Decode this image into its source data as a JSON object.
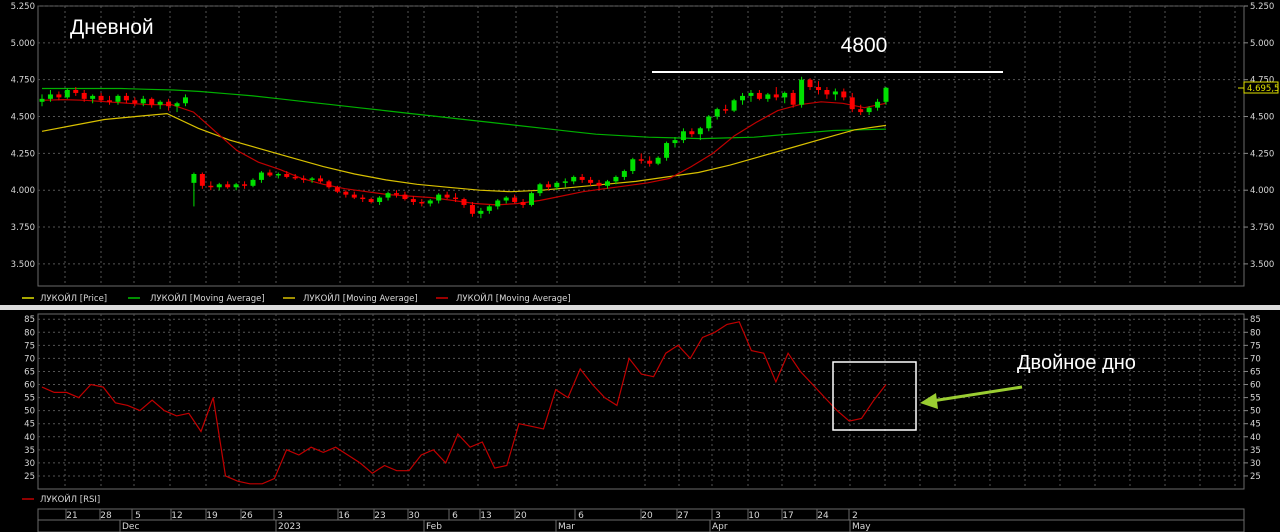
{
  "chart_data": [
    {
      "type": "candlestick",
      "panel": "price",
      "title": "Дневной",
      "y_ticks": [
        "5.250",
        "5.000",
        "4.750",
        "4.500",
        "4.250",
        "4.000",
        "3.750",
        "3.500"
      ],
      "ylim": [
        3350,
        5250
      ],
      "last_price_label": "4.695,5",
      "annotation": {
        "label": "4800",
        "level": 4800
      },
      "legend": [
        {
          "name": "ЛУКОЙЛ [Price]",
          "color": "#e0e000"
        },
        {
          "name": "ЛУКОЙЛ [Moving Average]",
          "color": "#00c000"
        },
        {
          "name": "ЛУКОЙЛ [Moving Average]",
          "color": "#d8c000"
        },
        {
          "name": "ЛУКОЙЛ [Moving Average]",
          "color": "#d00000"
        }
      ],
      "colors": {
        "up": "#00e000",
        "down": "#ff0000",
        "ma_long": "#00b000",
        "ma_mid": "#d8c000",
        "ma_short": "#c00000",
        "grid": "#5a5a5a"
      },
      "candles": [
        [
          4600,
          4650,
          4570,
          4620
        ],
        [
          4620,
          4680,
          4600,
          4650
        ],
        [
          4650,
          4670,
          4610,
          4630
        ],
        [
          4630,
          4690,
          4620,
          4680
        ],
        [
          4680,
          4700,
          4640,
          4660
        ],
        [
          4660,
          4680,
          4600,
          4620
        ],
        [
          4620,
          4650,
          4590,
          4640
        ],
        [
          4640,
          4660,
          4600,
          4610
        ],
        [
          4610,
          4640,
          4580,
          4600
        ],
        [
          4600,
          4650,
          4580,
          4640
        ],
        [
          4640,
          4660,
          4590,
          4610
        ],
        [
          4610,
          4630,
          4570,
          4590
        ],
        [
          4590,
          4640,
          4570,
          4620
        ],
        [
          4620,
          4630,
          4560,
          4580
        ],
        [
          4580,
          4610,
          4550,
          4600
        ],
        [
          4600,
          4620,
          4540,
          4570
        ],
        [
          4570,
          4600,
          4530,
          4590
        ],
        [
          4590,
          4650,
          4570,
          4630
        ],
        [
          4050,
          4120,
          3890,
          4110
        ],
        [
          4110,
          4120,
          4010,
          4030
        ],
        [
          4030,
          4060,
          4000,
          4020
        ],
        [
          4020,
          4050,
          4000,
          4040
        ],
        [
          4040,
          4060,
          4010,
          4020
        ],
        [
          4020,
          4050,
          4000,
          4040
        ],
        [
          4040,
          4060,
          4010,
          4030
        ],
        [
          4030,
          4080,
          4020,
          4070
        ],
        [
          4070,
          4130,
          4050,
          4120
        ],
        [
          4120,
          4140,
          4090,
          4100
        ],
        [
          4100,
          4120,
          4080,
          4110
        ],
        [
          4110,
          4130,
          4080,
          4090
        ],
        [
          4090,
          4110,
          4070,
          4080
        ],
        [
          4080,
          4100,
          4050,
          4070
        ],
        [
          4070,
          4090,
          4050,
          4080
        ],
        [
          4080,
          4100,
          4050,
          4060
        ],
        [
          4060,
          4070,
          4010,
          4020
        ],
        [
          4020,
          4030,
          3980,
          3990
        ],
        [
          3990,
          4000,
          3950,
          3970
        ],
        [
          3970,
          3990,
          3940,
          3950
        ],
        [
          3950,
          3970,
          3920,
          3940
        ],
        [
          3940,
          3950,
          3910,
          3920
        ],
        [
          3920,
          3960,
          3900,
          3950
        ],
        [
          3950,
          3990,
          3930,
          3980
        ],
        [
          3980,
          4000,
          3950,
          3970
        ],
        [
          3970,
          3990,
          3930,
          3940
        ],
        [
          3940,
          3960,
          3900,
          3920
        ],
        [
          3920,
          3940,
          3890,
          3910
        ],
        [
          3910,
          3940,
          3890,
          3930
        ],
        [
          3930,
          3980,
          3910,
          3970
        ],
        [
          3970,
          3990,
          3940,
          3950
        ],
        [
          3950,
          3980,
          3920,
          3940
        ],
        [
          3940,
          3950,
          3880,
          3900
        ],
        [
          3900,
          3920,
          3820,
          3840
        ],
        [
          3840,
          3880,
          3810,
          3860
        ],
        [
          3860,
          3900,
          3840,
          3890
        ],
        [
          3890,
          3940,
          3870,
          3930
        ],
        [
          3930,
          3960,
          3910,
          3950
        ],
        [
          3950,
          3970,
          3910,
          3920
        ],
        [
          3920,
          3940,
          3880,
          3900
        ],
        [
          3900,
          3990,
          3890,
          3980
        ],
        [
          3980,
          4050,
          3960,
          4040
        ],
        [
          4040,
          4060,
          4000,
          4020
        ],
        [
          4020,
          4060,
          4000,
          4050
        ],
        [
          4050,
          4080,
          4020,
          4060
        ],
        [
          4060,
          4100,
          4040,
          4090
        ],
        [
          4090,
          4110,
          4050,
          4070
        ],
        [
          4070,
          4090,
          4030,
          4050
        ],
        [
          4050,
          4070,
          4000,
          4030
        ],
        [
          4030,
          4070,
          4010,
          4060
        ],
        [
          4060,
          4100,
          4040,
          4090
        ],
        [
          4090,
          4140,
          4070,
          4130
        ],
        [
          4130,
          4220,
          4110,
          4210
        ],
        [
          4210,
          4250,
          4180,
          4200
        ],
        [
          4200,
          4230,
          4160,
          4180
        ],
        [
          4180,
          4230,
          4170,
          4220
        ],
        [
          4220,
          4330,
          4200,
          4320
        ],
        [
          4320,
          4360,
          4290,
          4340
        ],
        [
          4340,
          4420,
          4320,
          4400
        ],
        [
          4400,
          4420,
          4360,
          4380
        ],
        [
          4380,
          4430,
          4340,
          4420
        ],
        [
          4420,
          4510,
          4400,
          4500
        ],
        [
          4500,
          4560,
          4480,
          4550
        ],
        [
          4550,
          4580,
          4520,
          4540
        ],
        [
          4540,
          4620,
          4530,
          4610
        ],
        [
          4610,
          4660,
          4580,
          4640
        ],
        [
          4640,
          4680,
          4600,
          4660
        ],
        [
          4660,
          4680,
          4610,
          4620
        ],
        [
          4620,
          4660,
          4600,
          4650
        ],
        [
          4650,
          4700,
          4610,
          4630
        ],
        [
          4630,
          4670,
          4590,
          4660
        ],
        [
          4660,
          4680,
          4560,
          4580
        ],
        [
          4580,
          4770,
          4560,
          4750
        ],
        [
          4750,
          4760,
          4680,
          4700
        ],
        [
          4700,
          4740,
          4650,
          4680
        ],
        [
          4680,
          4700,
          4620,
          4650
        ],
        [
          4650,
          4690,
          4610,
          4670
        ],
        [
          4670,
          4690,
          4610,
          4630
        ],
        [
          4630,
          4660,
          4530,
          4550
        ],
        [
          4550,
          4580,
          4510,
          4530
        ],
        [
          4530,
          4570,
          4510,
          4560
        ],
        [
          4560,
          4620,
          4540,
          4600
        ],
        [
          4600,
          4700,
          4580,
          4695
        ]
      ],
      "ma_long": [
        4690,
        4690,
        4690,
        4690,
        4685,
        4680,
        4670,
        4655,
        4640,
        4620,
        4600,
        4580,
        4560,
        4540,
        4520,
        4500,
        4480,
        4460,
        4440,
        4420,
        4400,
        4380,
        4370,
        4360,
        4355,
        4350,
        4355,
        4360,
        4375,
        4390,
        4405,
        4410,
        4415
      ],
      "ma_mid": [
        4400,
        4440,
        4480,
        4500,
        4520,
        4420,
        4340,
        4280,
        4220,
        4160,
        4110,
        4070,
        4040,
        4020,
        4000,
        3990,
        4000,
        4020,
        4040,
        4060,
        4090,
        4120,
        4170,
        4230,
        4290,
        4350,
        4410,
        4440
      ],
      "ma_short": [
        4610,
        4615,
        4610,
        4600,
        4590,
        4580,
        4580,
        4530,
        4400,
        4270,
        4190,
        4140,
        4080,
        4040,
        4010,
        3990,
        3970,
        3960,
        3950,
        3930,
        3910,
        3900,
        3910,
        3930,
        3960,
        3990,
        4010,
        4030,
        4050,
        4080,
        4160,
        4250,
        4370,
        4460,
        4540,
        4580,
        4600,
        4590,
        4560,
        4590
      ]
    },
    {
      "type": "line",
      "panel": "rsi",
      "legend": [
        {
          "name": "ЛУКОЙЛ [RSI]",
          "color": "#c00000"
        }
      ],
      "ylim": [
        20,
        85
      ],
      "y_ticks": [
        "85",
        "80",
        "75",
        "70",
        "65",
        "60",
        "55",
        "50",
        "45",
        "40",
        "35",
        "30",
        "25"
      ],
      "annotation": {
        "label": "Двойное дно"
      },
      "series": [
        {
          "values": [
            59,
            57,
            57,
            55,
            60,
            59,
            53,
            52,
            50,
            54,
            50,
            48,
            49,
            42,
            55,
            25,
            23,
            22,
            22,
            24,
            35,
            33,
            36,
            34,
            36,
            33,
            30,
            26,
            29,
            27,
            27,
            33,
            35,
            30,
            41,
            36,
            38,
            28,
            29,
            45,
            44,
            43,
            58,
            55,
            66,
            60,
            55,
            52,
            70,
            64,
            63,
            72,
            75,
            70,
            78,
            80,
            83,
            84,
            73,
            72,
            61,
            72,
            65,
            60,
            55,
            50,
            46,
            47,
            54,
            60
          ]
        }
      ]
    }
  ],
  "x_axis": {
    "dates": [
      "21",
      "28",
      "5",
      "12",
      "19",
      "26",
      "3",
      "16",
      "23",
      "30",
      "6",
      "13",
      "20",
      "6",
      "20",
      "27",
      "3",
      "10",
      "17",
      "24",
      "2"
    ],
    "months": [
      "Dec",
      "2023",
      "Feb",
      "Mar",
      "Apr",
      "May"
    ]
  }
}
